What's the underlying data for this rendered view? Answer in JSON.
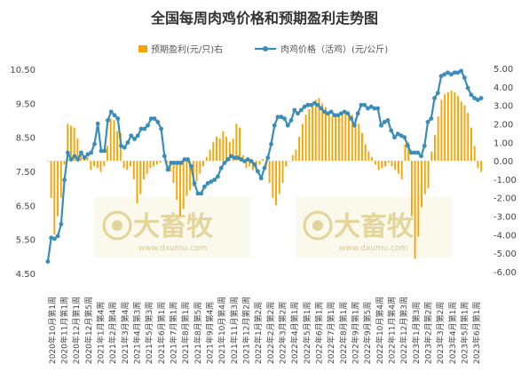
{
  "chart_data": {
    "type": "bar+line",
    "title": "全国每周肉鸡价格和预期盈利走势图",
    "legend_position": "top",
    "grid": {
      "horizontal": false,
      "vertical": false
    },
    "colors": {
      "bar": "#F5A400",
      "line": "#3A8DB9",
      "watermark": "#E6D58A"
    },
    "watermark": {
      "text": "大畜牧",
      "url": "www.dxumu.com"
    },
    "left_axis": {
      "min": 4.5,
      "max": 10.5,
      "ticks": [
        "4.50",
        "5.50",
        "6.50",
        "7.50",
        "8.50",
        "9.50",
        "10.50"
      ]
    },
    "right_axis": {
      "min": -6,
      "max": 5,
      "ticks": [
        "-6.00",
        "-5.00",
        "-4.00",
        "-3.00",
        "-2.00",
        "-1.00",
        "0.00",
        "1.00",
        "2.00",
        "3.00",
        "4.00",
        "5.00"
      ]
    },
    "series": [
      {
        "name": "预期盈利(元/只)右",
        "type": "bar",
        "axis": "right",
        "values": [
          0,
          -2,
          -4,
          -3,
          -2,
          -0.2,
          2,
          1.9,
          1.8,
          1.2,
          0.5,
          0.3,
          0.2,
          -0.5,
          -0.3,
          -0.4,
          -0.6,
          -0.3,
          0.8,
          2.3,
          2.2,
          1.6,
          1.5,
          -0.4,
          -0.5,
          -0.3,
          -1.0,
          -2.3,
          -1.8,
          -1.0,
          -0.7,
          -0.4,
          -0.3,
          -0.2,
          -0.1,
          0.0,
          -0.1,
          -0.6,
          -1.2,
          -2.1,
          -3.0,
          -2.6,
          -1.9,
          -1.6,
          -1.4,
          -1.1,
          -0.7,
          -0.3,
          0.2,
          0.6,
          1.0,
          1.3,
          1.2,
          1.6,
          1.3,
          1.0,
          1.2,
          2.0,
          1.8,
          0.3,
          -0.4,
          -0.3,
          -0.5,
          -0.6,
          -0.2,
          0.1,
          -0.3,
          -1.2,
          -2.0,
          -2.4,
          -1.8,
          -1.2,
          -0.3,
          0.0,
          0.3,
          0.6,
          1.3,
          2.0,
          2.5,
          2.8,
          3.1,
          3.3,
          3.4,
          3.1,
          2.9,
          2.5,
          2.4,
          2.4,
          2.5,
          2.6,
          2.7,
          2.6,
          2.5,
          2.3,
          2.0,
          1.5,
          0.9,
          0.5,
          0.2,
          -0.2,
          -0.5,
          -0.4,
          -0.3,
          -0.1,
          -0.3,
          -0.5,
          -0.7,
          -1.0,
          0.9,
          1.0,
          -3.0,
          -5.3,
          -4.1,
          -2.5,
          -1.8,
          -1.5,
          0.5,
          1.4,
          2.4,
          3.3,
          3.6,
          3.7,
          3.8,
          3.7,
          3.5,
          3.2,
          3.0,
          2.6,
          1.8,
          0.8,
          -0.4,
          -0.6
        ]
      },
      {
        "name": "肉鸡价格（活鸡）(元/公斤)",
        "type": "line",
        "axis": "left",
        "values": [
          4.85,
          5.55,
          5.52,
          5.6,
          5.95,
          7.25,
          8.05,
          7.85,
          7.95,
          7.85,
          8.05,
          7.9,
          8.0,
          8.05,
          8.3,
          8.9,
          8.1,
          8.1,
          9.0,
          9.25,
          9.15,
          9.05,
          8.25,
          8.2,
          8.35,
          8.55,
          8.45,
          8.55,
          8.75,
          8.75,
          8.85,
          9.05,
          9.05,
          8.95,
          8.75,
          7.95,
          7.55,
          7.75,
          7.75,
          7.75,
          7.75,
          7.85,
          7.85,
          7.65,
          7.15,
          6.85,
          6.85,
          7.05,
          7.15,
          7.2,
          7.25,
          7.35,
          7.6,
          7.75,
          7.85,
          7.95,
          7.9,
          7.9,
          7.85,
          7.8,
          7.85,
          7.8,
          7.7,
          7.5,
          7.3,
          7.6,
          7.9,
          8.3,
          8.85,
          9.1,
          9.1,
          9.05,
          8.85,
          9.0,
          9.3,
          9.2,
          9.3,
          9.4,
          9.45,
          9.45,
          9.5,
          9.45,
          9.35,
          9.25,
          9.2,
          9.25,
          9.15,
          9.15,
          9.2,
          9.25,
          9.2,
          9.05,
          8.85,
          9.2,
          9.45,
          9.45,
          9.35,
          9.4,
          9.35,
          9.35,
          8.85,
          8.95,
          9.0,
          8.7,
          8.5,
          8.6,
          8.55,
          8.5,
          8.25,
          8.05,
          8.05,
          8.05,
          7.95,
          8.25,
          8.95,
          9.05,
          9.65,
          9.8,
          10.3,
          10.35,
          10.4,
          10.35,
          10.4,
          10.4,
          10.45,
          10.25,
          9.95,
          9.75,
          9.65,
          9.6,
          9.65
        ]
      }
    ],
    "x_labels": [
      "2020年10月第1周",
      "2020年11月第1周",
      "2020年12月第1周",
      "2020年12月第5周",
      "2021年1月第4周",
      "2021年2月第4周",
      "2021年3月第4周",
      "2021年4月第3周",
      "2021年5月第3周",
      "2021年6月第1周",
      "2021年7月第1周",
      "2021年8月第1周",
      "2021年8月第5周",
      "2021年9月第4周",
      "2021年10月第4周",
      "2021年11月第3周",
      "2021年12月第2周",
      "2022年1月第2周",
      "2022年2月第2周",
      "2022年3月第2周",
      "2022年4月第1周",
      "2022年5月第1周",
      "2022年6月第1周",
      "2022年7月第1周",
      "2022年8月第1周",
      "2022年9月第1周",
      "2022年9月第5周",
      "2022年10月第4周",
      "2022年11月第4周",
      "2022年12月第3周",
      "2023年1月第3周",
      "2023年2月第2周",
      "2023年3月第2周",
      "2023年4月第1周",
      "2023年5月第1周",
      "2023年6月第1周"
    ]
  }
}
